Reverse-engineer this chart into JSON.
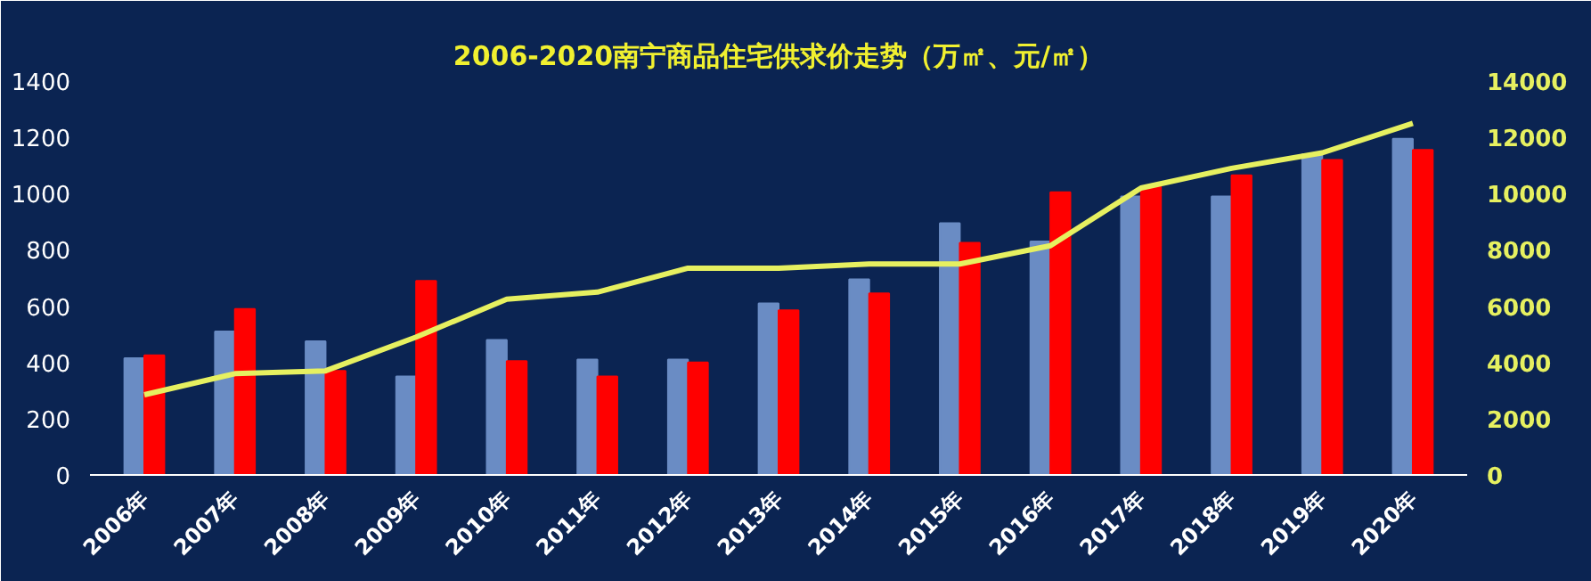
{
  "chart_data": {
    "type": "bar",
    "title": "2006-2020南宁商品住宅供求价走势（万㎡、元/㎡）",
    "categories": [
      "2006年",
      "2007年",
      "2008年",
      "2009年",
      "2010年",
      "2011年",
      "2012年",
      "2013年",
      "2014年",
      "2015年",
      "2016年",
      "2017年",
      "2018年",
      "2019年",
      "2020年"
    ],
    "series": [
      {
        "color": "#6a8cc4",
        "values": [
          415,
          510,
          475,
          350,
          480,
          410,
          410,
          610,
          695,
          895,
          830,
          990,
          990,
          1140,
          1195
        ]
      },
      {
        "color": "#ff0000",
        "values": [
          425,
          590,
          370,
          690,
          405,
          350,
          400,
          585,
          645,
          825,
          1005,
          1025,
          1065,
          1120,
          1155
        ]
      },
      {
        "type": "line",
        "axis": "y2",
        "color": "#e6f060",
        "values": [
          2850,
          3600,
          3700,
          4900,
          6250,
          6500,
          7350,
          7350,
          7500,
          7500,
          8150,
          10200,
          10900,
          11450,
          12500
        ]
      }
    ],
    "ylim": [
      0,
      1400
    ],
    "yticks": [
      0,
      200,
      400,
      600,
      800,
      1000,
      1200,
      1400
    ],
    "y2lim": [
      0,
      14000
    ],
    "y2ticks": [
      0,
      2000,
      4000,
      6000,
      8000,
      10000,
      12000,
      14000
    ],
    "grid": false,
    "marker": "none",
    "line_style": "solid"
  }
}
